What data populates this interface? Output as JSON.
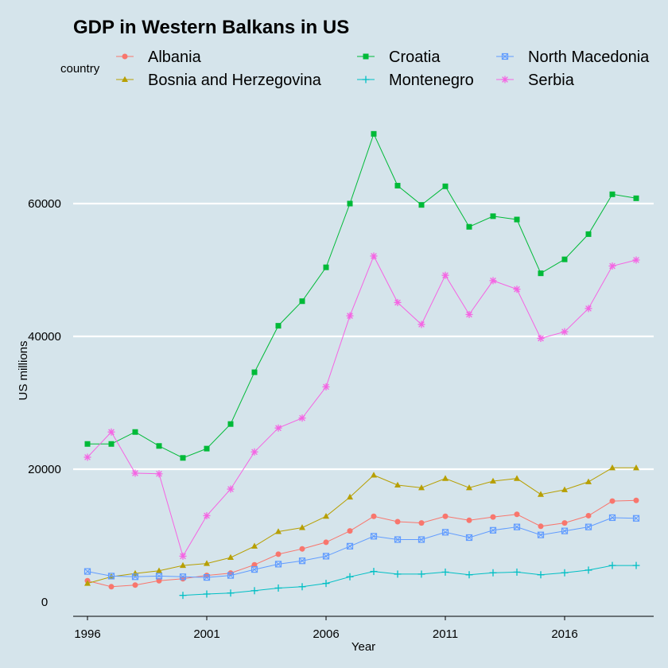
{
  "chart_data": {
    "type": "line",
    "title": "GDP in Western Balkans in US",
    "xlabel": "Year",
    "ylabel": "US millions",
    "legend_title": "country",
    "legend_position": "top",
    "grid": "horizontal major only",
    "xlim": [
      1996,
      2019
    ],
    "ylim": [
      0,
      70000
    ],
    "x_ticks": [
      1996,
      2001,
      2006,
      2011,
      2016
    ],
    "y_ticks": [
      0,
      20000,
      40000,
      60000
    ],
    "series": [
      {
        "name": "Albania",
        "color": "#f8766d",
        "marker": "circle",
        "x": [
          1996,
          1997,
          1998,
          1999,
          2000,
          2001,
          2002,
          2003,
          2004,
          2005,
          2006,
          2007,
          2008,
          2009,
          2010,
          2011,
          2012,
          2013,
          2014,
          2015,
          2016,
          2017,
          2018,
          2019
        ],
        "values": [
          3200,
          2300,
          2550,
          3200,
          3500,
          4000,
          4350,
          5600,
          7200,
          8000,
          9000,
          10700,
          12900,
          12100,
          11900,
          12900,
          12300,
          12800,
          13200,
          11400,
          11900,
          13000,
          15200,
          15300
        ]
      },
      {
        "name": "Bosnia and Herzegovina",
        "color": "#b79f00",
        "marker": "triangle",
        "x": [
          1996,
          1997,
          1998,
          1999,
          2000,
          2001,
          2002,
          2003,
          2004,
          2005,
          2006,
          2007,
          2008,
          2009,
          2010,
          2011,
          2012,
          2013,
          2014,
          2015,
          2016,
          2017,
          2018,
          2019
        ],
        "values": [
          2800,
          3800,
          4300,
          4700,
          5500,
          5800,
          6700,
          8400,
          10600,
          11200,
          12900,
          15800,
          19100,
          17600,
          17200,
          18600,
          17200,
          18200,
          18600,
          16200,
          16900,
          18100,
          20200,
          20200
        ]
      },
      {
        "name": "Croatia",
        "color": "#00ba38",
        "marker": "square",
        "x": [
          1996,
          1997,
          1998,
          1999,
          2000,
          2001,
          2002,
          2003,
          2004,
          2005,
          2006,
          2007,
          2008,
          2009,
          2010,
          2011,
          2012,
          2013,
          2014,
          2015,
          2016,
          2017,
          2018,
          2019
        ],
        "values": [
          23800,
          23800,
          25600,
          23500,
          21700,
          23100,
          26800,
          34600,
          41600,
          45300,
          50400,
          60000,
          70500,
          62700,
          59800,
          62600,
          56500,
          58100,
          57600,
          49500,
          51600,
          55400,
          61400,
          60800
        ]
      },
      {
        "name": "Montenegro",
        "color": "#00bfc4",
        "marker": "plus",
        "x": [
          2000,
          2001,
          2002,
          2003,
          2004,
          2005,
          2006,
          2007,
          2008,
          2009,
          2010,
          2011,
          2012,
          2013,
          2014,
          2015,
          2016,
          2017,
          2018,
          2019
        ],
        "values": [
          1000,
          1200,
          1350,
          1700,
          2100,
          2300,
          2800,
          3800,
          4600,
          4200,
          4200,
          4500,
          4100,
          4400,
          4500,
          4100,
          4400,
          4800,
          5500,
          5500
        ]
      },
      {
        "name": "North Macedonia",
        "color": "#619cff",
        "marker": "boxx",
        "x": [
          1996,
          1997,
          1998,
          1999,
          2000,
          2001,
          2002,
          2003,
          2004,
          2005,
          2006,
          2007,
          2008,
          2009,
          2010,
          2011,
          2012,
          2013,
          2014,
          2015,
          2016,
          2017,
          2018,
          2019
        ],
        "values": [
          4600,
          3900,
          3800,
          3900,
          3800,
          3700,
          4000,
          4900,
          5700,
          6200,
          6900,
          8400,
          9900,
          9400,
          9400,
          10500,
          9700,
          10800,
          11300,
          10100,
          10700,
          11300,
          12700,
          12600
        ]
      },
      {
        "name": "Serbia",
        "color": "#f564e3",
        "marker": "asterisk",
        "x": [
          1996,
          1997,
          1998,
          1999,
          2000,
          2001,
          2002,
          2003,
          2004,
          2005,
          2006,
          2007,
          2008,
          2009,
          2010,
          2011,
          2012,
          2013,
          2014,
          2015,
          2016,
          2017,
          2018,
          2019
        ],
        "values": [
          21800,
          25600,
          19400,
          19300,
          6900,
          13000,
          17000,
          22600,
          26200,
          27700,
          32400,
          43100,
          52100,
          45100,
          41800,
          49200,
          43300,
          48400,
          47100,
          39700,
          40700,
          44200,
          50600,
          51500
        ]
      }
    ]
  }
}
